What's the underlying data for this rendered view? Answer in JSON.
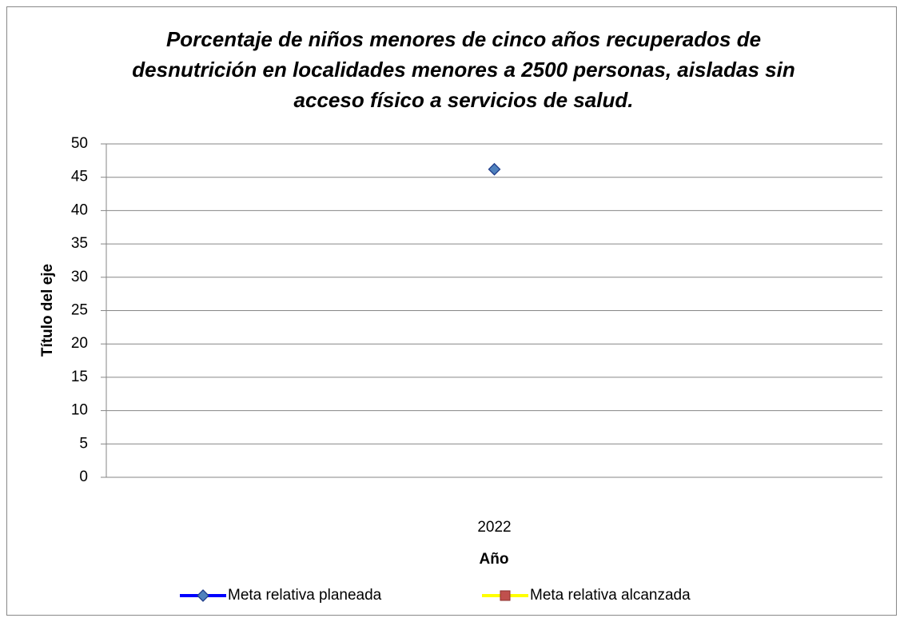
{
  "chart_data": {
    "type": "line",
    "title": "Porcentaje de niños menores de cinco años recuperados de desnutrición en localidades menores a 2500 personas, aisladas sin acceso físico a servicios de salud.",
    "x_label": "Año",
    "y_label": "Título del eje",
    "categories": [
      "2022"
    ],
    "series": [
      {
        "name": "Meta relativa planeada",
        "color": "#0000ff",
        "marker": "diamond",
        "marker_color": "#4f81bd",
        "values": [
          46.2
        ]
      },
      {
        "name": "Meta relativa alcanzada",
        "color": "#ffff00",
        "marker": "square",
        "marker_color": "#c0504d",
        "values": [
          null
        ]
      }
    ],
    "ylim": [
      0,
      50
    ],
    "yticks": [
      0,
      5,
      10,
      15,
      20,
      25,
      30,
      35,
      40,
      45,
      50
    ],
    "grid": true,
    "legend": "bottom"
  }
}
